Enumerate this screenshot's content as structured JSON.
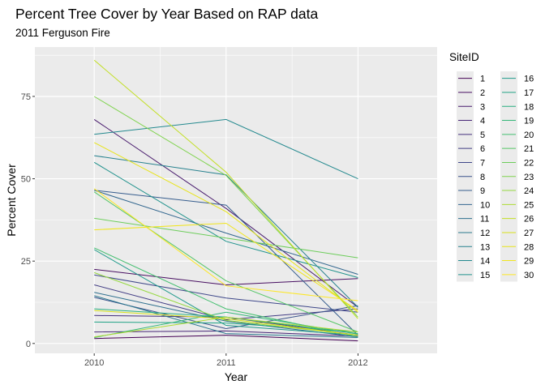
{
  "chart_data": {
    "type": "line",
    "title": "Percent Tree Cover by Year Based on RAP data",
    "subtitle": "2011 Ferguson Fire",
    "xlabel": "Year",
    "ylabel": "Percent Cover",
    "x": [
      2010,
      2011,
      2012
    ],
    "x_ticks": [
      "2010",
      "2011",
      "2012"
    ],
    "y_ticks": [
      0,
      25,
      50,
      75
    ],
    "xlim": [
      2009.55,
      2012.6
    ],
    "ylim": [
      -3,
      90
    ],
    "grid": true,
    "legend_title": "SiteID",
    "legend_position": "right",
    "series": [
      {
        "name": "1",
        "values": [
          1.5,
          2.5,
          0.8
        ],
        "color": "#440154"
      },
      {
        "name": "2",
        "values": [
          22.5,
          17.8,
          19.7
        ],
        "color": "#470E61"
      },
      {
        "name": "3",
        "values": [
          68.0,
          41.0,
          11.0
        ],
        "color": "#481B6D"
      },
      {
        "name": "4",
        "values": [
          3.5,
          3.8,
          2.2
        ],
        "color": "#472677"
      },
      {
        "name": "5",
        "values": [
          8.5,
          8.0,
          2.5
        ],
        "color": "#45317E"
      },
      {
        "name": "6",
        "values": [
          17.8,
          7.2,
          10.5
        ],
        "color": "#423D84"
      },
      {
        "name": "7",
        "values": [
          20.8,
          13.8,
          9.5
        ],
        "color": "#3E4789"
      },
      {
        "name": "8",
        "values": [
          14.0,
          4.5,
          11.5
        ],
        "color": "#3A528B"
      },
      {
        "name": "9",
        "values": [
          46.5,
          42.0,
          2.5
        ],
        "color": "#355C8D"
      },
      {
        "name": "10",
        "values": [
          46.5,
          33.5,
          21.0
        ],
        "color": "#31668E"
      },
      {
        "name": "11",
        "values": [
          15.5,
          6.8,
          2.0
        ],
        "color": "#2D6F8E"
      },
      {
        "name": "12",
        "values": [
          14.5,
          3.0,
          1.8
        ],
        "color": "#2A788E"
      },
      {
        "name": "13",
        "values": [
          57.0,
          51.2,
          11.0
        ],
        "color": "#26818E"
      },
      {
        "name": "14",
        "values": [
          63.5,
          68.0,
          50.0
        ],
        "color": "#23898E"
      },
      {
        "name": "15",
        "values": [
          55.0,
          31.0,
          20.0
        ],
        "color": "#20928C"
      },
      {
        "name": "16",
        "values": [
          28.5,
          5.5,
          2.5
        ],
        "color": "#1F9A8A"
      },
      {
        "name": "17",
        "values": [
          6.5,
          6.2,
          3.5
        ],
        "color": "#21A386"
      },
      {
        "name": "18",
        "values": [
          10.5,
          8.0,
          3.0
        ],
        "color": "#28AE80"
      },
      {
        "name": "19",
        "values": [
          1.8,
          9.5,
          2.8
        ],
        "color": "#35B779"
      },
      {
        "name": "20",
        "values": [
          29.0,
          10.5,
          2.0
        ],
        "color": "#44BF70"
      },
      {
        "name": "21",
        "values": [
          46.0,
          19.0,
          3.5
        ],
        "color": "#56C667"
      },
      {
        "name": "22",
        "values": [
          38.0,
          32.0,
          26.0
        ],
        "color": "#6CCD5A"
      },
      {
        "name": "23",
        "values": [
          75.0,
          51.0,
          8.0
        ],
        "color": "#7FD34E"
      },
      {
        "name": "24",
        "values": [
          21.5,
          7.0,
          2.5
        ],
        "color": "#95D840"
      },
      {
        "name": "25",
        "values": [
          2.0,
          8.0,
          3.5
        ],
        "color": "#ADDC30"
      },
      {
        "name": "26",
        "values": [
          86.0,
          52.0,
          7.5
        ],
        "color": "#C2DF23"
      },
      {
        "name": "27",
        "values": [
          10.0,
          7.5,
          2.5
        ],
        "color": "#D8E219"
      },
      {
        "name": "28",
        "values": [
          61.0,
          40.0,
          9.5
        ],
        "color": "#E8E419"
      },
      {
        "name": "29",
        "values": [
          34.5,
          36.5,
          10.0
        ],
        "color": "#F1E51D"
      },
      {
        "name": "30",
        "values": [
          47.0,
          17.5,
          13.0
        ],
        "color": "#FDE725"
      }
    ]
  }
}
